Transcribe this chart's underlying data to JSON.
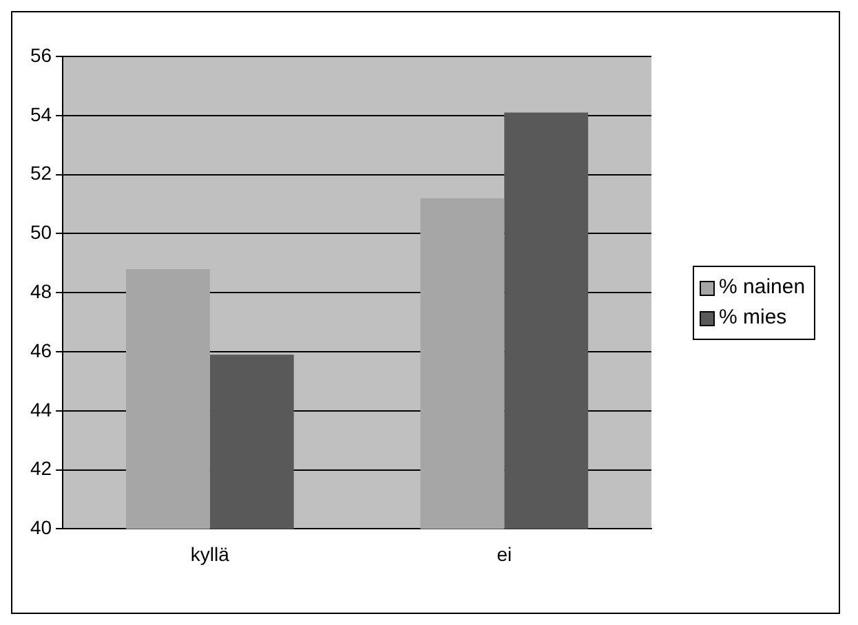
{
  "chart_data": {
    "type": "bar",
    "categories": [
      "kyllä",
      "ei"
    ],
    "series": [
      {
        "name": "% nainen",
        "color": "#a6a6a6",
        "values": [
          48.8,
          51.2
        ]
      },
      {
        "name": "% mies",
        "color": "#595959",
        "values": [
          45.9,
          54.1
        ]
      }
    ],
    "ylim": [
      40,
      56
    ],
    "yticks": [
      40,
      42,
      44,
      46,
      48,
      50,
      52,
      54,
      56
    ],
    "grid": "y",
    "legend": "right"
  }
}
